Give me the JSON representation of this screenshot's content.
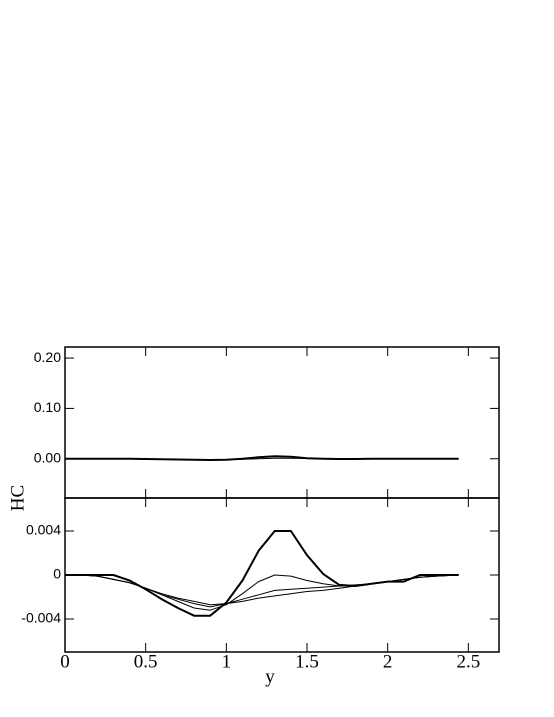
{
  "chart_data": [
    {
      "type": "line",
      "xlim": [
        0,
        2.69
      ],
      "ylim": [
        -0.078,
        0.222
      ],
      "yticks": [
        {
          "value": 0.2,
          "label": "0.20"
        },
        {
          "value": 0.1,
          "label": "0.10"
        },
        {
          "value": 0,
          "label": "0.00"
        }
      ],
      "x": [
        0,
        0.1,
        0.2,
        0.3,
        0.4,
        0.5,
        0.6,
        0.7,
        0.8,
        0.9,
        1.0,
        1.1,
        1.2,
        1.3,
        1.4,
        1.5,
        1.6,
        1.7,
        1.8,
        1.9,
        2.0,
        2.1,
        2.2,
        2.3,
        2.44
      ],
      "series": [
        {
          "color": "#000000",
          "linewidth": 2,
          "values": [
            0,
            0,
            0,
            0,
            0,
            -0.0005,
            -0.001,
            -0.0015,
            -0.002,
            -0.0025,
            -0.002,
            0,
            0.003,
            0.005,
            0.004,
            0.001,
            0,
            -0.0005,
            -0.0005,
            0,
            0,
            0,
            0,
            0,
            0
          ]
        },
        {
          "color": "#000000",
          "linewidth": 1,
          "values": [
            0,
            0,
            0,
            0,
            0,
            -0.0005,
            -0.001,
            -0.0015,
            -0.002,
            -0.002,
            -0.0015,
            -0.001,
            0,
            0.001,
            0.001,
            0.0005,
            0,
            0,
            0,
            0,
            0,
            0,
            0,
            0,
            0
          ]
        }
      ]
    },
    {
      "type": "line",
      "xlim": [
        0,
        2.69
      ],
      "ylim": [
        -0.007,
        0.007
      ],
      "xticks": [
        0,
        0.5,
        1,
        1.5,
        2,
        2.5
      ],
      "yticks": [
        0.004,
        0,
        -0.004
      ],
      "xlabel": "y",
      "ylabel": "HC",
      "x": [
        0,
        0.1,
        0.2,
        0.3,
        0.4,
        0.5,
        0.6,
        0.7,
        0.8,
        0.9,
        1.0,
        1.1,
        1.2,
        1.3,
        1.4,
        1.5,
        1.6,
        1.7,
        1.8,
        1.9,
        2.0,
        2.1,
        2.2,
        2.3,
        2.44
      ],
      "series": [
        {
          "color": "#000000",
          "linewidth": 2,
          "values": [
            0,
            0,
            0,
            0,
            -0.0005,
            -0.0013,
            -0.0022,
            -0.003,
            -0.0037,
            -0.0037,
            -0.0025,
            -0.0005,
            0.0022,
            0.004,
            0.004,
            0.0018,
            0.0001,
            -0.0009,
            -0.001,
            -0.0008,
            -0.0006,
            -0.0006,
            0,
            0,
            0
          ]
        },
        {
          "color": "#000000",
          "linewidth": 1,
          "values": [
            0,
            0,
            -0.0001,
            -0.0004,
            -0.0007,
            -0.0012,
            -0.0018,
            -0.0024,
            -0.003,
            -0.0032,
            -0.0027,
            -0.0017,
            -0.0006,
            0,
            -0.0001,
            -0.0005,
            -0.0008,
            -0.001,
            -0.001,
            -0.0008,
            -0.0006,
            -0.0004,
            -0.0002,
            -0.0001,
            0
          ]
        },
        {
          "color": "#000000",
          "linewidth": 1,
          "values": [
            0,
            0,
            -0.0001,
            -0.0004,
            -0.0007,
            -0.0012,
            -0.0018,
            -0.0022,
            -0.0026,
            -0.0029,
            -0.0026,
            -0.0022,
            -0.0018,
            -0.0014,
            -0.0013,
            -0.0012,
            -0.0011,
            -0.001,
            -0.0009,
            -0.0008,
            -0.0006,
            -0.0004,
            -0.0002,
            -0.0001,
            0
          ]
        },
        {
          "color": "#000000",
          "linewidth": 1,
          "values": [
            0,
            0,
            -0.0001,
            -0.0004,
            -0.0007,
            -0.0012,
            -0.0017,
            -0.0021,
            -0.0024,
            -0.0027,
            -0.0026,
            -0.0024,
            -0.0021,
            -0.0019,
            -0.0017,
            -0.0015,
            -0.0014,
            -0.0012,
            -0.001,
            -0.0008,
            -0.0006,
            -0.0004,
            -0.0002,
            -0.0001,
            0
          ]
        }
      ]
    }
  ]
}
